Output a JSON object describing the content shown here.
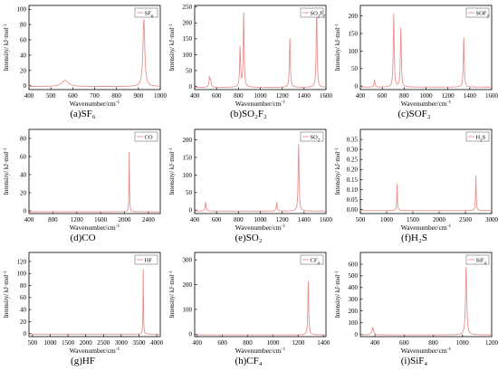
{
  "figure": {
    "line_color": "#e8908e",
    "axis_color": "#000000"
  },
  "chart_data": [
    {
      "type": "line",
      "panel": "a",
      "caption": "(a)SF₆",
      "legend": "SF₆",
      "legend_position": "top-right",
      "xlabel": "Wavenumber/cm⁻¹",
      "ylabel": "Intensity/ kJ·mol⁻¹",
      "xlim": [
        400,
        1000
      ],
      "ylim": [
        -5,
        105
      ],
      "xticks": [
        400,
        500,
        600,
        700,
        800,
        900,
        1000
      ],
      "yticks": [
        0,
        20,
        40,
        60,
        80,
        100
      ],
      "baseline": -1,
      "peaks": [
        {
          "x": 565,
          "y": 7,
          "w": 18
        },
        {
          "x": 925,
          "y": 87,
          "w": 5
        }
      ]
    },
    {
      "type": "line",
      "panel": "b",
      "caption": "(b)SO₂F₂",
      "legend": "SO₂F₂",
      "legend_position": "top-right",
      "xlabel": "Wavenumber/cm⁻¹",
      "ylabel": "Intensity/ kJ·mol⁻¹",
      "xlim": [
        400,
        1600
      ],
      "ylim": [
        -10,
        255
      ],
      "xticks": [
        400,
        600,
        800,
        1000,
        1200,
        1400,
        1600
      ],
      "yticks": [
        0,
        50,
        100,
        150,
        200,
        250
      ],
      "baseline": -3,
      "peaks": [
        {
          "x": 535,
          "y": 27,
          "w": 5
        },
        {
          "x": 545,
          "y": 18,
          "w": 5
        },
        {
          "x": 815,
          "y": 122,
          "w": 5
        },
        {
          "x": 848,
          "y": 230,
          "w": 5
        },
        {
          "x": 1270,
          "y": 152,
          "w": 5
        },
        {
          "x": 1515,
          "y": 248,
          "w": 5
        }
      ]
    },
    {
      "type": "line",
      "panel": "c",
      "caption": "(c)SOF₂",
      "legend": "SOF₂",
      "legend_position": "top-right",
      "xlabel": "Wavenumber/cm⁻¹",
      "ylabel": "Intensity/ kJ·mol⁻¹",
      "xlim": [
        400,
        1600
      ],
      "ylim": [
        -10,
        230
      ],
      "xticks": [
        400,
        600,
        800,
        1000,
        1200,
        1400,
        1600
      ],
      "yticks": [
        0,
        50,
        100,
        150,
        200
      ],
      "baseline": -3,
      "peaks": [
        {
          "x": 530,
          "y": 17,
          "w": 5
        },
        {
          "x": 705,
          "y": 205,
          "w": 5
        },
        {
          "x": 770,
          "y": 166,
          "w": 5
        },
        {
          "x": 1345,
          "y": 138,
          "w": 5
        }
      ]
    },
    {
      "type": "line",
      "panel": "d",
      "caption": "(d)CO",
      "legend": "CO",
      "legend_position": "top-right",
      "xlabel": "Wavenumber/cm⁻¹",
      "ylabel": "Intensity/ kJ·mol⁻¹",
      "xlim": [
        400,
        2600
      ],
      "ylim": [
        -3,
        90
      ],
      "xticks": [
        400,
        800,
        1200,
        1600,
        2000,
        2400
      ],
      "yticks": [
        0,
        20,
        40,
        60,
        80
      ],
      "baseline": -1,
      "peaks": [
        {
          "x": 2080,
          "y": 65,
          "w": 5
        }
      ]
    },
    {
      "type": "line",
      "panel": "e",
      "caption": "(e)SO₂",
      "legend": "SO₂",
      "legend_position": "top-right",
      "xlabel": "Wavenumber/cm⁻¹",
      "ylabel": "Intensity/ kJ·mol⁻¹",
      "xlim": [
        400,
        1600
      ],
      "ylim": [
        -10,
        230
      ],
      "xticks": [
        400,
        600,
        800,
        1000,
        1200,
        1400,
        1600
      ],
      "yticks": [
        0,
        50,
        100,
        150,
        200
      ],
      "baseline": -3,
      "peaks": [
        {
          "x": 500,
          "y": 22,
          "w": 5
        },
        {
          "x": 1150,
          "y": 21,
          "w": 5
        },
        {
          "x": 1350,
          "y": 188,
          "w": 5
        }
      ]
    },
    {
      "type": "line",
      "panel": "f",
      "caption": "(f)H₂S",
      "legend": "H₂S",
      "legend_position": "top-right",
      "xlabel": "Wavenumber/cm⁻¹",
      "ylabel": "Intensity/ kJ·mol⁻¹",
      "xlim": [
        500,
        3000
      ],
      "ylim": [
        -0.02,
        0.4
      ],
      "xticks": [
        500,
        1000,
        1500,
        2000,
        2500,
        3000
      ],
      "yticks": [
        0.0,
        0.05,
        0.1,
        0.15,
        0.2,
        0.25,
        0.3,
        0.35
      ],
      "ytick_labels": [
        "0.00",
        "0.05",
        "0.10",
        "0.15",
        "0.20",
        "0.25",
        "0.30",
        "0.35"
      ],
      "baseline": -0.005,
      "peaks": [
        {
          "x": 1200,
          "y": 0.13,
          "w": 7
        },
        {
          "x": 2700,
          "y": 0.17,
          "w": 7
        }
      ]
    },
    {
      "type": "line",
      "panel": "g",
      "caption": "(g)HF",
      "legend": "HF",
      "legend_position": "top-right",
      "xlabel": "Wavenumber/cm⁻¹",
      "ylabel": "Intensity/ kJ·mol⁻¹",
      "xlim": [
        400,
        4100
      ],
      "ylim": [
        -5,
        135
      ],
      "xticks": [
        500,
        1000,
        1500,
        2000,
        2500,
        3000,
        3500,
        4000
      ],
      "yticks": [
        0,
        20,
        40,
        60,
        80,
        100,
        120
      ],
      "baseline": -1,
      "peaks": [
        {
          "x": 3620,
          "y": 107,
          "w": 8
        }
      ]
    },
    {
      "type": "line",
      "panel": "h",
      "caption": "(h)CF₄",
      "legend": "CF₄",
      "legend_position": "top-right",
      "xlabel": "Wavenumber/cm⁻¹",
      "ylabel": "Intensity/ kJ·mol⁻¹",
      "xlim": [
        380,
        1420
      ],
      "ylim": [
        -10,
        330
      ],
      "xticks": [
        400,
        600,
        800,
        1000,
        1200,
        1400
      ],
      "yticks": [
        0,
        100,
        200,
        300
      ],
      "baseline": -3,
      "peaks": [
        {
          "x": 1280,
          "y": 215,
          "w": 4
        }
      ]
    },
    {
      "type": "line",
      "panel": "i",
      "caption": "(i)SiF₄",
      "legend": "SiF₄",
      "legend_position": "top-right",
      "xlabel": "Wavenumber/cm⁻¹",
      "ylabel": "Intensity/ kJ·mol⁻¹",
      "xlim": [
        300,
        1200
      ],
      "ylim": [
        -20,
        700
      ],
      "xticks": [
        400,
        600,
        800,
        1000,
        1200
      ],
      "yticks": [
        0,
        100,
        200,
        300,
        400,
        500,
        600
      ],
      "baseline": -5,
      "peaks": [
        {
          "x": 385,
          "y": 55,
          "w": 7
        },
        {
          "x": 1025,
          "y": 575,
          "w": 5
        }
      ]
    }
  ]
}
